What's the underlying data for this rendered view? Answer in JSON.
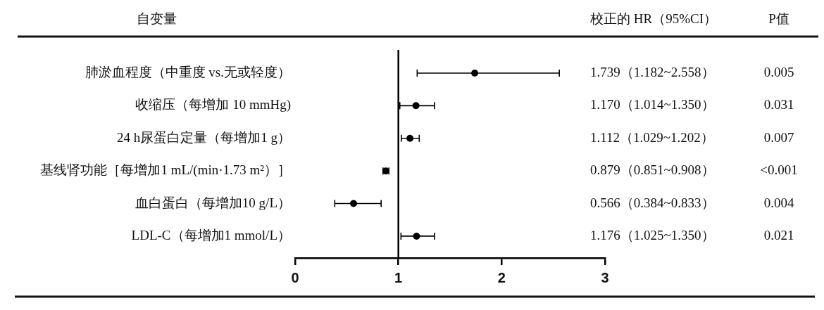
{
  "chart_data": {
    "type": "scatter",
    "orientation": "horizontal",
    "ylabel": "自变量",
    "categories": [
      "肺淤血程度（中重度 vs.无或轻度）",
      "收缩压（每增加 10 mmHg)",
      "24 h尿蛋白定量（每增加1 g）",
      "基线肾功能［每增加1 mL/(min·1.73 m²）］",
      "血白蛋白（每增加10 g/L）",
      "LDL-C（每增加1 mmol/L）"
    ],
    "values": [
      1.739,
      1.17,
      1.112,
      0.879,
      0.566,
      1.176
    ],
    "errors": [
      [
        1.182,
        2.558
      ],
      [
        1.014,
        1.35
      ],
      [
        1.029,
        1.202
      ],
      [
        0.851,
        0.908
      ],
      [
        0.384,
        0.833
      ],
      [
        1.025,
        1.35
      ]
    ],
    "value_labels": [
      "1.739（1.182~2.558）",
      "1.170（1.014~1.350）",
      "1.112（1.029~1.202）",
      "0.879（0.851~0.908）",
      "0.566（0.384~0.833）",
      "1.176（1.025~1.350）"
    ],
    "color": "#000000",
    "marker": "circle",
    "xlim": [
      0,
      3
    ],
    "xticks": [
      0,
      1,
      2,
      3
    ],
    "ref_lines": [
      {
        "axis": "x",
        "value": 1,
        "color": "#000000"
      }
    ],
    "grid": false,
    "legend": false,
    "annotations": [
      "校正的 HR（95%CI）",
      "P值",
      "0.005",
      "0.031",
      "0.007",
      "<0.001",
      "0.004",
      "0.021"
    ]
  }
}
